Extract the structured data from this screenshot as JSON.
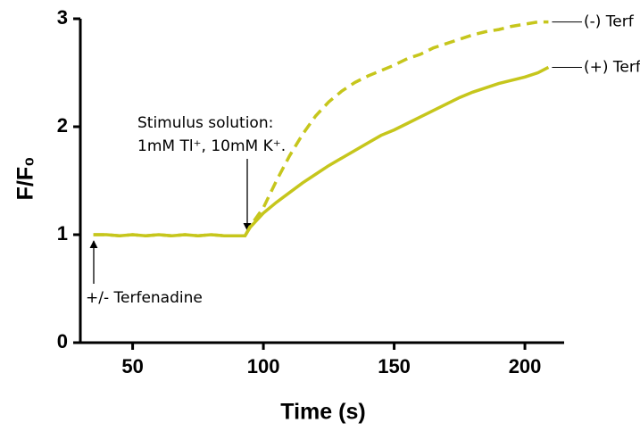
{
  "chart_data": {
    "type": "line",
    "x_label": "Time (s)",
    "y_label": "F/F₀",
    "x": [
      35,
      40,
      45,
      50,
      55,
      60,
      65,
      70,
      75,
      80,
      85,
      90,
      93,
      95,
      100,
      105,
      110,
      115,
      120,
      125,
      130,
      135,
      140,
      145,
      150,
      155,
      160,
      165,
      170,
      175,
      180,
      185,
      190,
      195,
      200,
      205,
      209
    ],
    "series": [
      {
        "name": "(-) Terf",
        "color": "#c6c61c",
        "dashed": true,
        "values": [
          1.0,
          1.0,
          0.99,
          1.0,
          0.99,
          1.0,
          0.99,
          1.0,
          0.99,
          1.0,
          0.99,
          0.99,
          0.99,
          1.08,
          1.25,
          1.5,
          1.73,
          1.93,
          2.1,
          2.23,
          2.33,
          2.41,
          2.47,
          2.52,
          2.57,
          2.63,
          2.67,
          2.73,
          2.77,
          2.81,
          2.85,
          2.88,
          2.9,
          2.93,
          2.95,
          2.97,
          2.97
        ]
      },
      {
        "name": "(+) Terf",
        "color": "#c6c61c",
        "dashed": false,
        "values": [
          1.0,
          1.0,
          0.99,
          1.0,
          0.99,
          1.0,
          0.99,
          1.0,
          0.99,
          1.0,
          0.99,
          0.99,
          0.99,
          1.07,
          1.2,
          1.3,
          1.39,
          1.48,
          1.56,
          1.64,
          1.71,
          1.78,
          1.85,
          1.92,
          1.97,
          2.03,
          2.09,
          2.15,
          2.21,
          2.27,
          2.32,
          2.36,
          2.4,
          2.43,
          2.46,
          2.5,
          2.55
        ]
      }
    ],
    "annotations": [
      "Stimulus solution:",
      "1mM Tl⁺, 10mM K⁺.",
      "+/- Terfenadine"
    ],
    "xlim": [
      30,
      215
    ],
    "xticks": [
      50,
      100,
      150,
      200
    ],
    "ylim": [
      0,
      3
    ],
    "yticks": [
      0,
      1,
      2,
      3
    ],
    "grid": false
  }
}
